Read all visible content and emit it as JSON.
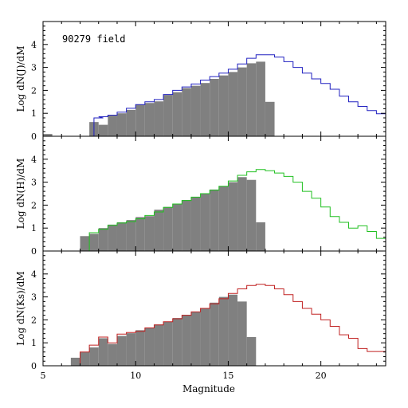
{
  "figure": {
    "xlabel": "Magnitude",
    "xlim": [
      5,
      23.5
    ],
    "x_ticks": [
      5,
      10,
      15,
      20
    ]
  },
  "chart_data": [
    {
      "type": "histogram",
      "ylabel": "Log dN(J)/dM",
      "annotation": "90279 field",
      "ylim": [
        0,
        5
      ],
      "y_ticks": [
        0,
        1,
        2,
        3,
        4
      ],
      "line_color": "#2020c0",
      "bar_color": "#808080",
      "bin_width": 0.5,
      "bars": {
        "x_start": [
          5.0,
          7.5,
          8.0,
          8.5,
          9.0,
          9.5,
          10.0,
          10.5,
          11.0,
          11.5,
          12.0,
          12.5,
          13.0,
          13.5,
          14.0,
          14.5,
          15.0,
          15.5,
          16.0,
          16.5,
          17.0
        ],
        "values": [
          0.1,
          0.62,
          0.5,
          0.9,
          1.0,
          1.15,
          1.38,
          1.45,
          1.52,
          1.8,
          1.92,
          2.1,
          2.2,
          2.32,
          2.5,
          2.65,
          2.8,
          3.0,
          3.18,
          3.25,
          1.5
        ]
      },
      "line": {
        "x_start": [
          7.75,
          8.0,
          8.5,
          9.0,
          9.5,
          10.0,
          10.5,
          11.0,
          11.5,
          12.0,
          12.5,
          13.0,
          13.5,
          14.0,
          14.5,
          15.0,
          15.5,
          16.0,
          16.5,
          17.0,
          17.5,
          18.0,
          18.5,
          19.0,
          19.5,
          20.0,
          20.5,
          21.0,
          21.5,
          22.0,
          22.5,
          23.0
        ],
        "values": [
          0.8,
          0.85,
          0.92,
          1.05,
          1.22,
          1.38,
          1.5,
          1.6,
          1.82,
          2.0,
          2.15,
          2.28,
          2.45,
          2.6,
          2.75,
          2.92,
          3.15,
          3.4,
          3.55,
          3.55,
          3.45,
          3.25,
          3.0,
          2.75,
          2.5,
          2.3,
          2.05,
          1.75,
          1.5,
          1.3,
          1.12,
          0.98
        ]
      }
    },
    {
      "type": "histogram",
      "ylabel": "Log dN(H)/dM",
      "annotation": "",
      "ylim": [
        0,
        5
      ],
      "y_ticks": [
        0,
        1,
        2,
        3,
        4
      ],
      "line_color": "#20c020",
      "bar_color": "#808080",
      "bin_width": 0.5,
      "bars": {
        "x_start": [
          7.0,
          7.5,
          8.0,
          8.5,
          9.0,
          9.5,
          10.0,
          10.5,
          11.0,
          11.5,
          12.0,
          12.5,
          13.0,
          13.5,
          14.0,
          14.5,
          15.0,
          15.5,
          16.0,
          16.5
        ],
        "values": [
          0.65,
          0.75,
          1.0,
          1.15,
          1.25,
          1.35,
          1.48,
          1.52,
          1.8,
          1.92,
          2.05,
          2.22,
          2.35,
          2.5,
          2.68,
          2.82,
          3.0,
          3.22,
          3.1,
          1.25
        ]
      },
      "line": {
        "x_start": [
          7.5,
          8.0,
          8.5,
          9.0,
          9.5,
          10.0,
          10.5,
          11.0,
          11.5,
          12.0,
          12.5,
          13.0,
          13.5,
          14.0,
          14.5,
          15.0,
          15.5,
          16.0,
          16.5,
          17.0,
          17.5,
          18.0,
          18.5,
          19.0,
          19.5,
          20.0,
          20.5,
          21.0,
          21.5,
          22.0,
          22.5,
          23.0
        ],
        "values": [
          0.8,
          0.95,
          1.12,
          1.22,
          1.28,
          1.4,
          1.55,
          1.7,
          1.9,
          2.05,
          2.2,
          2.35,
          2.5,
          2.65,
          2.82,
          3.05,
          3.3,
          3.45,
          3.55,
          3.5,
          3.4,
          3.25,
          3.0,
          2.6,
          2.3,
          1.92,
          1.5,
          1.25,
          1.0,
          1.1,
          0.85,
          0.55
        ]
      }
    },
    {
      "type": "histogram",
      "ylabel": "Log dN(Ks)/dM",
      "annotation": "",
      "ylim": [
        0,
        5
      ],
      "y_ticks": [
        0,
        1,
        2,
        3,
        4
      ],
      "line_color": "#c02020",
      "bar_color": "#808080",
      "bin_width": 0.5,
      "bars": {
        "x_start": [
          6.5,
          7.0,
          7.5,
          8.0,
          8.5,
          9.0,
          9.5,
          10.0,
          10.5,
          11.0,
          11.5,
          12.0,
          12.5,
          13.0,
          13.5,
          14.0,
          14.5,
          15.0,
          15.5,
          16.0
        ],
        "values": [
          0.35,
          0.6,
          0.8,
          1.2,
          0.95,
          1.3,
          1.42,
          1.55,
          1.65,
          1.8,
          1.92,
          2.08,
          2.22,
          2.35,
          2.5,
          2.75,
          3.0,
          3.1,
          2.8,
          1.25
        ]
      },
      "line": {
        "x_start": [
          7.0,
          7.5,
          8.0,
          8.5,
          9.0,
          9.5,
          10.0,
          10.5,
          11.0,
          11.5,
          12.0,
          12.5,
          13.0,
          13.5,
          14.0,
          14.5,
          15.0,
          15.5,
          16.0,
          16.5,
          17.0,
          17.5,
          18.0,
          18.5,
          19.0,
          19.5,
          20.0,
          20.5,
          21.0,
          21.5,
          22.0,
          22.5,
          23.0
        ],
        "values": [
          0.6,
          0.9,
          1.25,
          1.0,
          1.38,
          1.45,
          1.5,
          1.65,
          1.78,
          1.92,
          2.05,
          2.2,
          2.35,
          2.5,
          2.7,
          2.92,
          3.15,
          3.35,
          3.5,
          3.55,
          3.5,
          3.35,
          3.1,
          2.8,
          2.5,
          2.25,
          2.0,
          1.72,
          1.35,
          1.2,
          0.75,
          0.62,
          0.62
        ]
      }
    }
  ]
}
